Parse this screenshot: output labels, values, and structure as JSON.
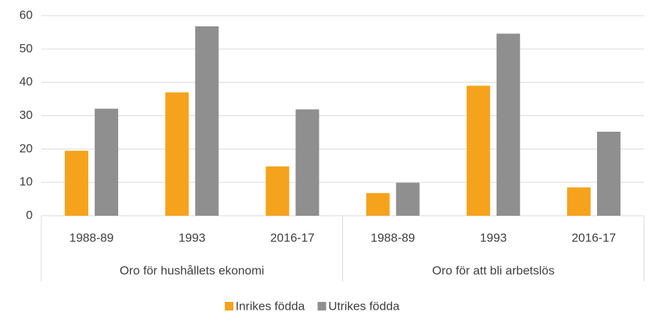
{
  "chart_data": {
    "type": "bar",
    "categories": [
      "1988-89",
      "1993",
      "2016-17",
      "1988-89",
      "1993",
      "2016-17"
    ],
    "groups": [
      "Oro för hushållets ekonomi",
      "Oro för att bli arbetslös"
    ],
    "series": [
      {
        "name": "Inrikes födda",
        "color": "#f5a31c",
        "values": [
          19.5,
          37,
          14.8,
          6.8,
          39,
          8.5
        ]
      },
      {
        "name": "Utrikes födda",
        "color": "#8f8f8f",
        "values": [
          32.1,
          56.8,
          31.9,
          9.9,
          54.6,
          25.2
        ]
      }
    ],
    "ylim": [
      0,
      60
    ],
    "yticks": [
      0,
      10,
      20,
      30,
      40,
      50,
      60
    ],
    "grid": true,
    "legend": "bottom"
  }
}
